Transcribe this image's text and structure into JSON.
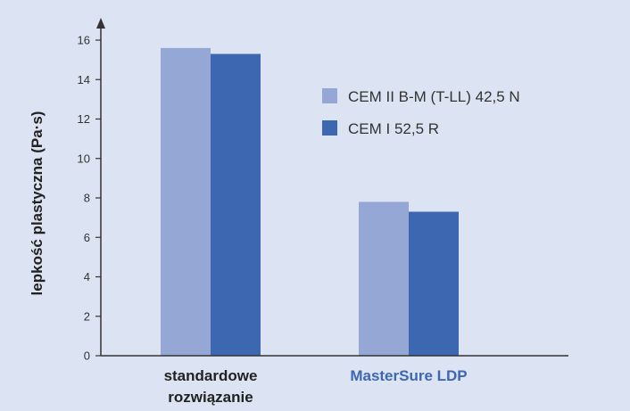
{
  "chart_data": {
    "type": "bar",
    "ylabel": "lepkość plastyczna (Pa·s)",
    "ylim": [
      0,
      16
    ],
    "yticks": [
      0,
      2,
      4,
      6,
      8,
      10,
      12,
      14,
      16
    ],
    "grid": false,
    "legend_position": "top-right",
    "categories": [
      {
        "lines": [
          "standardowe",
          "rozwiązanie"
        ],
        "color": "#222222"
      },
      {
        "lines": [
          "MasterSure LDP"
        ],
        "color": "#3d68b1"
      }
    ],
    "series": [
      {
        "name": "CEM II B-M (T-LL) 42,5 N",
        "color": "#95a7d5",
        "values": [
          15.6,
          7.8
        ]
      },
      {
        "name": "CEM I 52,5 R",
        "color": "#3d68b1",
        "values": [
          15.3,
          7.3
        ]
      }
    ]
  },
  "colors": {
    "background": "#dce3f2",
    "axis": "#333333"
  }
}
